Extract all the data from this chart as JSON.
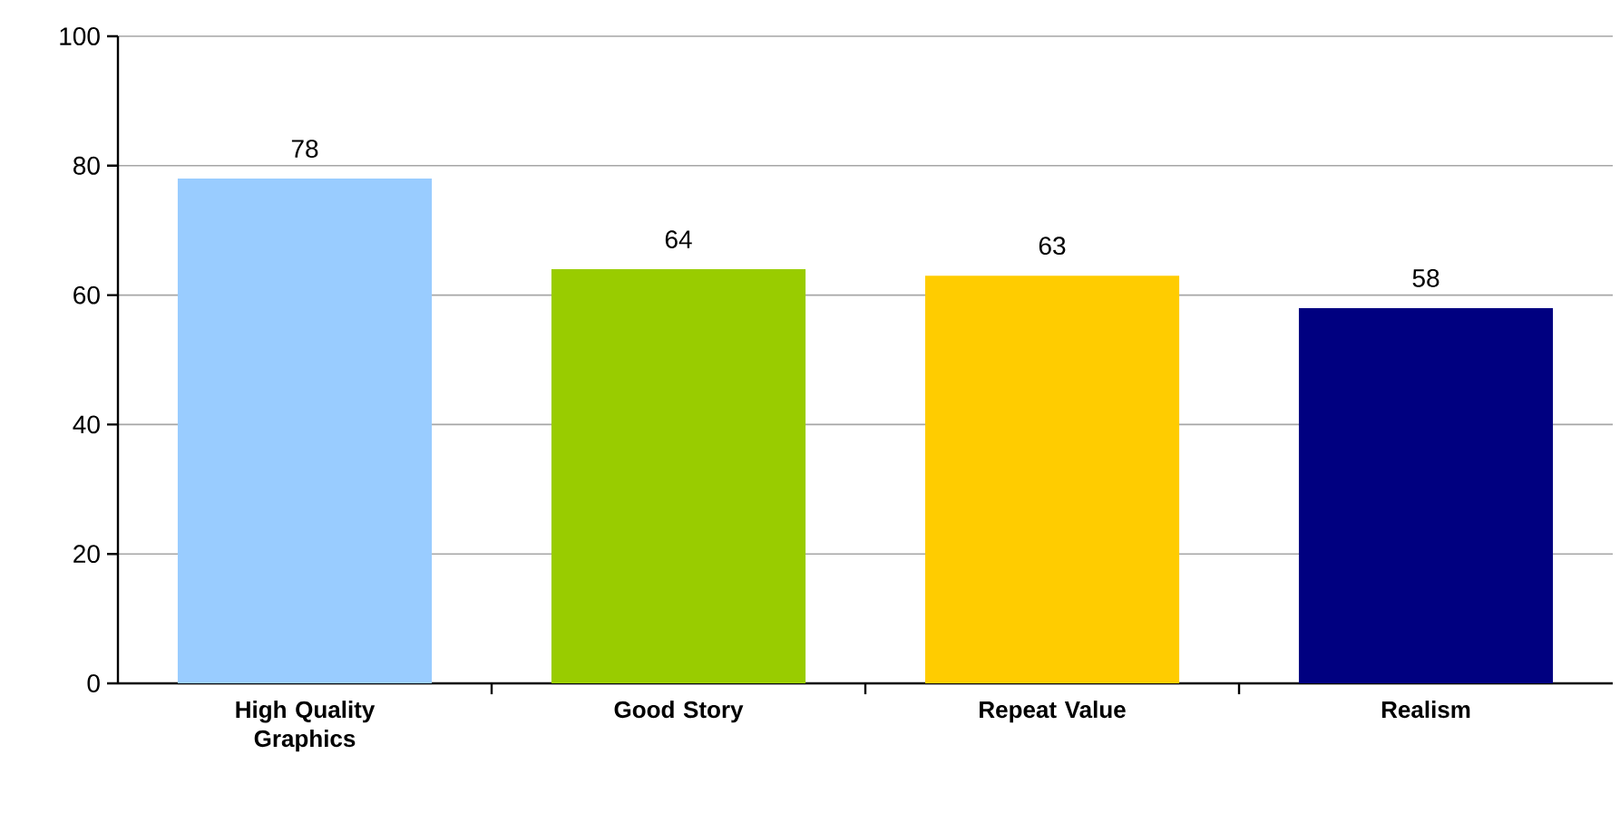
{
  "chart_data": {
    "type": "bar",
    "categories": [
      "High Quality Graphics",
      "Good Story",
      "Repeat Value",
      "Realism"
    ],
    "values": [
      78,
      64,
      63,
      58
    ],
    "colors": [
      "#99ccff",
      "#99cc00",
      "#ffcc00",
      "#000080"
    ],
    "ylim": [
      0,
      100
    ],
    "yticks": [
      0,
      20,
      40,
      60,
      80,
      100
    ],
    "grid": "y",
    "data_labels": true
  }
}
